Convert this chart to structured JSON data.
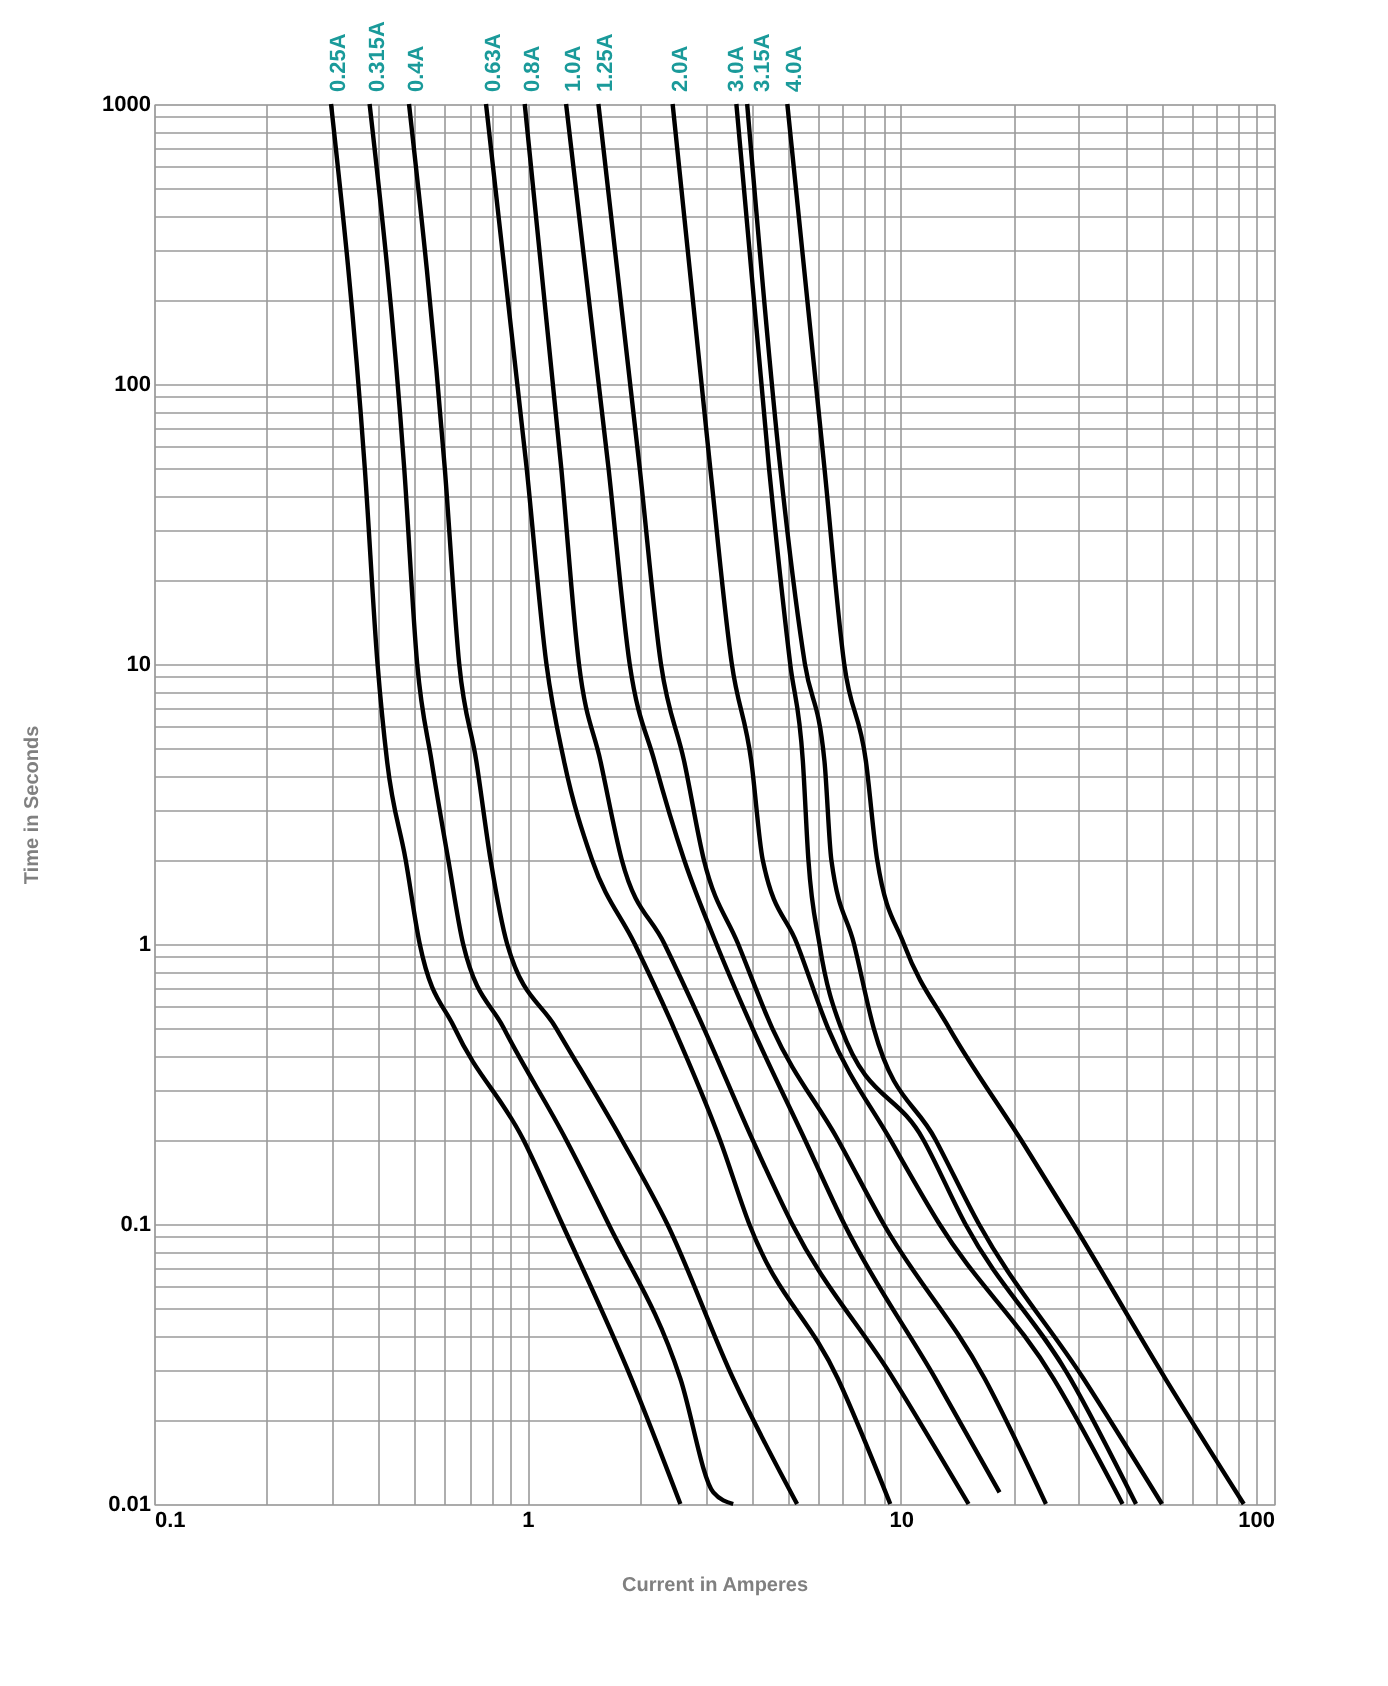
{
  "chart_data": {
    "type": "line",
    "xlabel": "Current in Amperes",
    "ylabel": "Time in Seconds",
    "log": "xy",
    "grid": true,
    "marker": "none",
    "line_style": "solid",
    "xlim": [
      0.1,
      100
    ],
    "ylim": [
      0.01,
      1000
    ],
    "xticks": [
      0.1,
      {
        "value": 0.2,
        "label": null
      },
      {
        "value": 0.3,
        "label": null
      },
      {
        "value": 0.4,
        "label": null
      },
      {
        "value": 0.5,
        "label": null
      },
      {
        "value": 0.6,
        "label": null
      },
      {
        "value": 0.7,
        "label": null
      },
      {
        "value": 0.8,
        "label": null
      },
      {
        "value": 0.9,
        "label": null
      },
      1,
      {
        "value": 2,
        "label": null
      },
      {
        "value": 3,
        "label": null
      },
      {
        "value": 4,
        "label": null
      },
      {
        "value": 5,
        "label": null
      },
      {
        "value": 6,
        "label": null
      },
      {
        "value": 7,
        "label": null
      },
      {
        "value": 8,
        "label": null
      },
      {
        "value": 9,
        "label": null
      },
      10,
      {
        "value": 20,
        "label": null
      },
      {
        "value": 30,
        "label": null
      },
      {
        "value": 40,
        "label": null
      },
      {
        "value": 50,
        "label": null
      },
      {
        "value": 60,
        "label": null
      },
      {
        "value": 70,
        "label": null
      },
      {
        "value": 80,
        "label": null
      },
      {
        "value": 90,
        "label": null
      },
      100
    ],
    "yticks": [
      0.01,
      {
        "value": 0.02,
        "label": null
      },
      {
        "value": 0.03,
        "label": null
      },
      {
        "value": 0.04,
        "label": null
      },
      {
        "value": 0.05,
        "label": null
      },
      {
        "value": 0.06,
        "label": null
      },
      {
        "value": 0.07,
        "label": null
      },
      {
        "value": 0.08,
        "label": null
      },
      {
        "value": 0.09,
        "label": null
      },
      0.1,
      {
        "value": 0.2,
        "label": null
      },
      {
        "value": 0.3,
        "label": null
      },
      {
        "value": 0.4,
        "label": null
      },
      {
        "value": 0.5,
        "label": null
      },
      {
        "value": 0.6,
        "label": null
      },
      {
        "value": 0.7,
        "label": null
      },
      {
        "value": 0.8,
        "label": null
      },
      {
        "value": 0.9,
        "label": null
      },
      1,
      {
        "value": 2,
        "label": null
      },
      {
        "value": 3,
        "label": null
      },
      {
        "value": 4,
        "label": null
      },
      {
        "value": 5,
        "label": null
      },
      {
        "value": 6,
        "label": null
      },
      {
        "value": 7,
        "label": null
      },
      {
        "value": 8,
        "label": null
      },
      {
        "value": 9,
        "label": null
      },
      10,
      {
        "value": 20,
        "label": null
      },
      {
        "value": 30,
        "label": null
      },
      {
        "value": 40,
        "label": null
      },
      {
        "value": 50,
        "label": null
      },
      {
        "value": 60,
        "label": null
      },
      {
        "value": 70,
        "label": null
      },
      {
        "value": 80,
        "label": null
      },
      {
        "value": 90,
        "label": null
      },
      100,
      {
        "value": 200,
        "label": null
      },
      {
        "value": 300,
        "label": null
      },
      {
        "value": 400,
        "label": null
      },
      {
        "value": 500,
        "label": null
      },
      {
        "value": 600,
        "label": null
      },
      {
        "value": 700,
        "label": null
      },
      {
        "value": 800,
        "label": null
      },
      {
        "value": 900,
        "label": null
      },
      1000
    ],
    "series": [
      {
        "name": "0.25A",
        "color": "#000000",
        "x": [
          0.298,
          0.367,
          0.397,
          0.421,
          0.472,
          0.515,
          0.639,
          0.976,
          1.24,
          1.9,
          2.57
        ],
        "values": [
          1000,
          50,
          10,
          4.5,
          2,
          1,
          0.5,
          0.2,
          0.1,
          0.028,
          0.01
        ]
      },
      {
        "name": "0.315A",
        "color": "#000000",
        "x": [
          0.378,
          0.468,
          0.507,
          0.554,
          0.614,
          0.673,
          0.865,
          1.27,
          1.65,
          2.57,
          3.15,
          3.56
        ],
        "values": [
          1000,
          50,
          10,
          4.5,
          2,
          1,
          0.5,
          0.2,
          0.1,
          0.028,
          0.011,
          0.01
        ]
      },
      {
        "name": "0.4A",
        "color": "#000000",
        "x": [
          0.482,
          0.601,
          0.657,
          0.73,
          0.797,
          0.883,
          1.195,
          1.79,
          2.37,
          3.56,
          5.28
        ],
        "values": [
          1000,
          50,
          10,
          4.5,
          2,
          1,
          0.5,
          0.2,
          0.1,
          0.028,
          0.01
        ]
      },
      {
        "name": "0.63A",
        "color": "#000000",
        "x": [
          0.775,
          0.996,
          1.125,
          1.254,
          1.49,
          1.94,
          2.47,
          3.28,
          3.93,
          6.79,
          9.38
        ],
        "values": [
          1000,
          50,
          10,
          4.5,
          2,
          1,
          0.5,
          0.2,
          0.1,
          0.028,
          0.01
        ]
      },
      {
        "name": "0.8A",
        "color": "#000000",
        "x": [
          0.984,
          1.233,
          1.375,
          1.57,
          1.79,
          2.33,
          2.97,
          4.01,
          5.12,
          9.56,
          15.2
        ],
        "values": [
          1000,
          50,
          10,
          4.5,
          2,
          1,
          0.5,
          0.2,
          0.1,
          0.028,
          0.01
        ]
      },
      {
        "name": "1.0A",
        "color": "#000000",
        "x": [
          1.27,
          1.65,
          1.88,
          2.19,
          2.63,
          3.21,
          4.01,
          5.54,
          7.06,
          12.4,
          18.4
        ],
        "values": [
          1000,
          50,
          10,
          4.5,
          2,
          1,
          0.5,
          0.2,
          0.1,
          0.028,
          0.011
        ]
      },
      {
        "name": "1.25A",
        "color": "#000000",
        "x": [
          1.55,
          2.0,
          2.28,
          2.63,
          2.97,
          3.67,
          4.53,
          6.79,
          9.0,
          16.8,
          24.5
        ],
        "values": [
          1000,
          50,
          10,
          4.5,
          2,
          1,
          0.5,
          0.2,
          0.1,
          0.028,
          0.01
        ]
      },
      {
        "name": "2.0A",
        "color": "#000000",
        "x": [
          2.45,
          3.09,
          3.53,
          3.98,
          4.27,
          5.28,
          6.39,
          9.38,
          12.7,
          25.7,
          39.3
        ],
        "values": [
          1000,
          50,
          10,
          4.5,
          2,
          1,
          0.5,
          0.2,
          0.1,
          0.028,
          0.01
        ]
      },
      {
        "name": "3.0A",
        "color": "#000000",
        "x": [
          3.63,
          4.44,
          5.06,
          5.47,
          5.66,
          6.06,
          6.93,
          11.5,
          14.9,
          28.5,
          42.7
        ],
        "values": [
          1000,
          50,
          10,
          4.5,
          2,
          1,
          0.5,
          0.2,
          0.1,
          0.028,
          0.01
        ]
      },
      {
        "name": "3.15A",
        "color": "#000000",
        "x": [
          3.88,
          4.76,
          5.54,
          6.25,
          6.52,
          7.5,
          8.47,
          12.4,
          16.2,
          30.9,
          50.1
        ],
        "values": [
          1000,
          50,
          10,
          4.5,
          2,
          1,
          0.5,
          0.2,
          0.1,
          0.028,
          0.01
        ]
      },
      {
        "name": "4.0A",
        "color": "#000000",
        "x": [
          4.97,
          6.25,
          7.06,
          8.07,
          8.65,
          10.2,
          13.5,
          21.0,
          29.0,
          51.2,
          83.0
        ],
        "values": [
          1000,
          50,
          10,
          4.5,
          2,
          1,
          0.5,
          0.2,
          0.1,
          0.028,
          0.01
        ]
      }
    ]
  }
}
